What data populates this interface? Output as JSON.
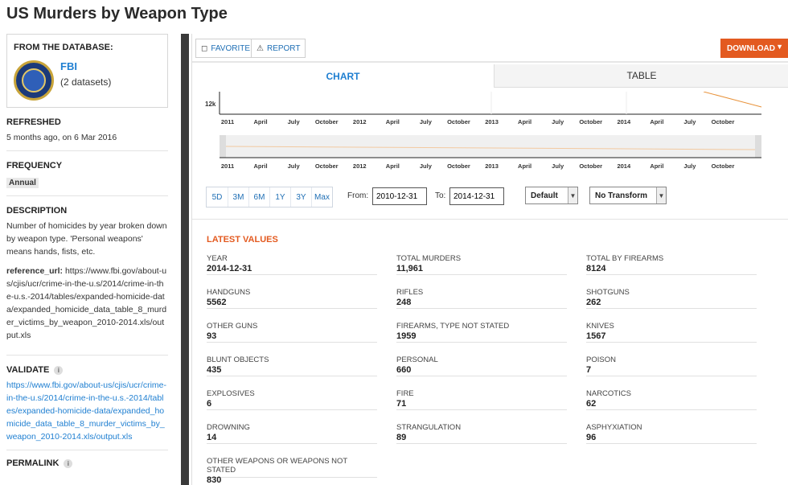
{
  "page_title": "US Murders by Weapon Type",
  "sidebar": {
    "db_heading": "FROM THE DATABASE:",
    "db_name": "FBI",
    "db_count": "(2 datasets)",
    "refreshed_title": "REFRESHED",
    "refreshed_text": "5 months ago, on 6 Mar 2016",
    "frequency_title": "FREQUENCY",
    "frequency_value": "Annual",
    "description_title": "DESCRIPTION",
    "description_text": "Number of homicides by year broken down by weapon type. 'Personal weapons' means hands, fists, etc.",
    "ref_key": "reference_url:",
    "ref_url": "https://www.fbi.gov/about-us/cjis/ucr/crime-in-the-u.s/2014/crime-in-the-u.s.-2014/tables/expanded-homicide-data/expanded_homicide_data_table_8_murder_victims_by_weapon_2010-2014.xls/output.xls",
    "validate_title": "VALIDATE",
    "validate_url": "https://www.fbi.gov/about-us/cjis/ucr/crime-in-the-u.s/2014/crime-in-the-u.s.-2014/tables/expanded-homicide-data/expanded_homicide_data_table_8_murder_victims_by_weapon_2010-2014.xls/output.xls",
    "permalink_title": "PERMALINK"
  },
  "toolbar": {
    "favorite": "FAVORITE",
    "report": "REPORT",
    "download": "DOWNLOAD"
  },
  "tabs": {
    "chart": "CHART",
    "table": "TABLE"
  },
  "chart_data": {
    "type": "line",
    "y_tick": "12k",
    "x_ticks_top": [
      "2011",
      "April",
      "July",
      "October",
      "2012",
      "April",
      "July",
      "October",
      "2013",
      "April",
      "July",
      "October",
      "2014",
      "April",
      "July",
      "October"
    ],
    "x_ticks_bottom": [
      "2011",
      "April",
      "July",
      "October",
      "2012",
      "April",
      "July",
      "October",
      "2013",
      "April",
      "July",
      "October",
      "2014",
      "April",
      "July",
      "October"
    ]
  },
  "controls": {
    "ranges": [
      "5D",
      "3M",
      "6M",
      "1Y",
      "3Y",
      "Max"
    ],
    "from_label": "From:",
    "from_value": "2010-12-31",
    "to_label": "To:",
    "to_value": "2014-12-31",
    "aggregation": "Default",
    "transform": "No Transform"
  },
  "latest": {
    "title": "LATEST VALUES",
    "items": [
      {
        "label": "YEAR",
        "value": "2014-12-31"
      },
      {
        "label": "TOTAL MURDERS",
        "value": "11,961"
      },
      {
        "label": "TOTAL BY FIREARMS",
        "value": "8124"
      },
      {
        "label": "HANDGUNS",
        "value": "5562"
      },
      {
        "label": "RIFLES",
        "value": "248"
      },
      {
        "label": "SHOTGUNS",
        "value": "262"
      },
      {
        "label": "OTHER GUNS",
        "value": "93"
      },
      {
        "label": "FIREARMS, TYPE NOT STATED",
        "value": "1959"
      },
      {
        "label": "KNIVES",
        "value": "1567"
      },
      {
        "label": "BLUNT OBJECTS",
        "value": "435"
      },
      {
        "label": "PERSONAL",
        "value": "660"
      },
      {
        "label": "POISON",
        "value": "7"
      },
      {
        "label": "EXPLOSIVES",
        "value": "6"
      },
      {
        "label": "FIRE",
        "value": "71"
      },
      {
        "label": "NARCOTICS",
        "value": "62"
      },
      {
        "label": "DROWNING",
        "value": "14"
      },
      {
        "label": "STRANGULATION",
        "value": "89"
      },
      {
        "label": "ASPHYXIATION",
        "value": "96"
      },
      {
        "label": "OTHER WEAPONS OR WEAPONS NOT STATED",
        "value": "830"
      }
    ]
  }
}
